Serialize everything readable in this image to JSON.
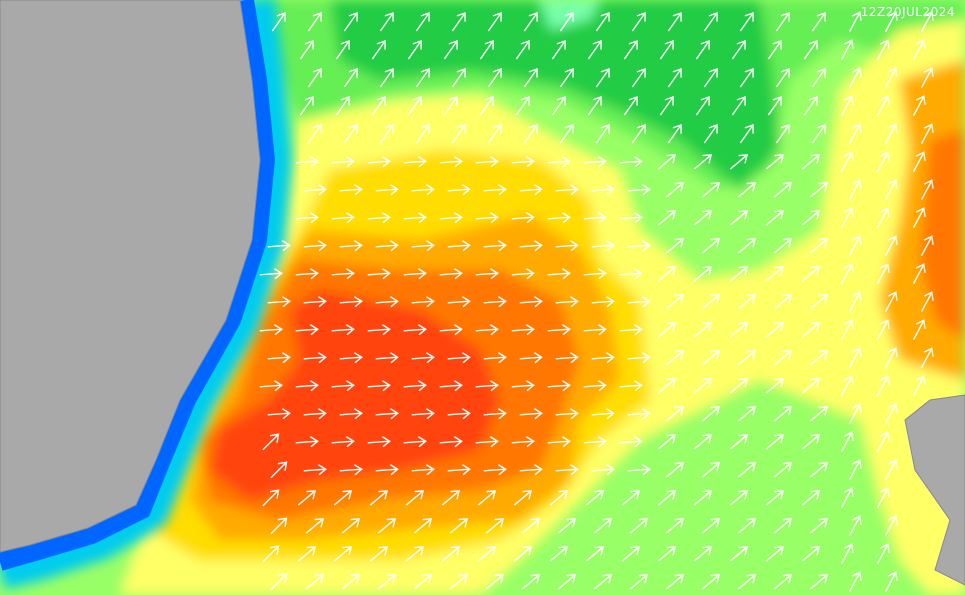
{
  "timestamp": "12Z20JUL2024"
}
